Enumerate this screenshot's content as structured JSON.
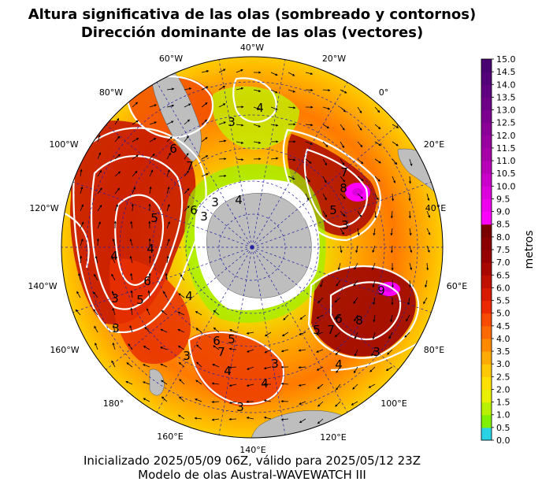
{
  "title_line1": "Altura significativa de las olas (sombreado y contornos)",
  "title_line2": "Dirección dominante de las olas (vectores)",
  "footer_line1": "Inicializado 2025/05/09 06Z, válido para 2025/05/12 23Z",
  "footer_line2": "Modelo de olas Austral-WAVEWATCH III",
  "map": {
    "projection": "south-polar-stereographic",
    "longitude_labels": [
      "40°W",
      "20°W",
      "0°",
      "20°E",
      "40°E",
      "60°E",
      "80°E",
      "100°E",
      "120°E",
      "140°E",
      "160°E",
      "180°",
      "160°W",
      "140°W",
      "120°W",
      "100°W",
      "80°W",
      "60°W"
    ],
    "contour_labels": [
      "4",
      "3",
      "6",
      "7",
      "3",
      "4",
      "3",
      "6",
      "5",
      "4",
      "4",
      "6",
      "5",
      "3",
      "3",
      "4",
      "7",
      "8",
      "5",
      "3",
      "9",
      "8",
      "7",
      "6",
      "5",
      "4",
      "3",
      "6",
      "5",
      "7",
      "4",
      "3",
      "3",
      "4",
      "3"
    ],
    "colors": {
      "land": "#bebebe",
      "ocean_ice": "#ffffff",
      "contour": "#ffffff",
      "graticule": "#1f1fa0"
    }
  },
  "colorbar": {
    "label": "metros",
    "ticks": [
      "0.0",
      "0.5",
      "1.0",
      "1.5",
      "2.0",
      "2.5",
      "3.0",
      "3.5",
      "4.0",
      "4.5",
      "5.0",
      "5.5",
      "6.0",
      "6.5",
      "7.0",
      "7.5",
      "8.0",
      "8.5",
      "9.0",
      "9.5",
      "10.0",
      "10.5",
      "11.0",
      "11.5",
      "12.0",
      "12.5",
      "13.0",
      "13.5",
      "14.0",
      "14.5",
      "15.0"
    ],
    "colors": [
      "#2ad2e6",
      "#7ff000",
      "#b9f000",
      "#e8f000",
      "#ffe000",
      "#ffc800",
      "#ffaa00",
      "#ff8a00",
      "#ff6a00",
      "#f84a00",
      "#ec2a00",
      "#d81a00",
      "#c01000",
      "#a80800",
      "#960000",
      "#8a0000",
      "#7a0000",
      "#ff00ff",
      "#ee00ee",
      "#dc00dc",
      "#ca00ca",
      "#b800b8",
      "#a600a8",
      "#9800a0",
      "#8a0098",
      "#7c0090",
      "#6e0088",
      "#600080",
      "#540078",
      "#480070"
    ]
  }
}
